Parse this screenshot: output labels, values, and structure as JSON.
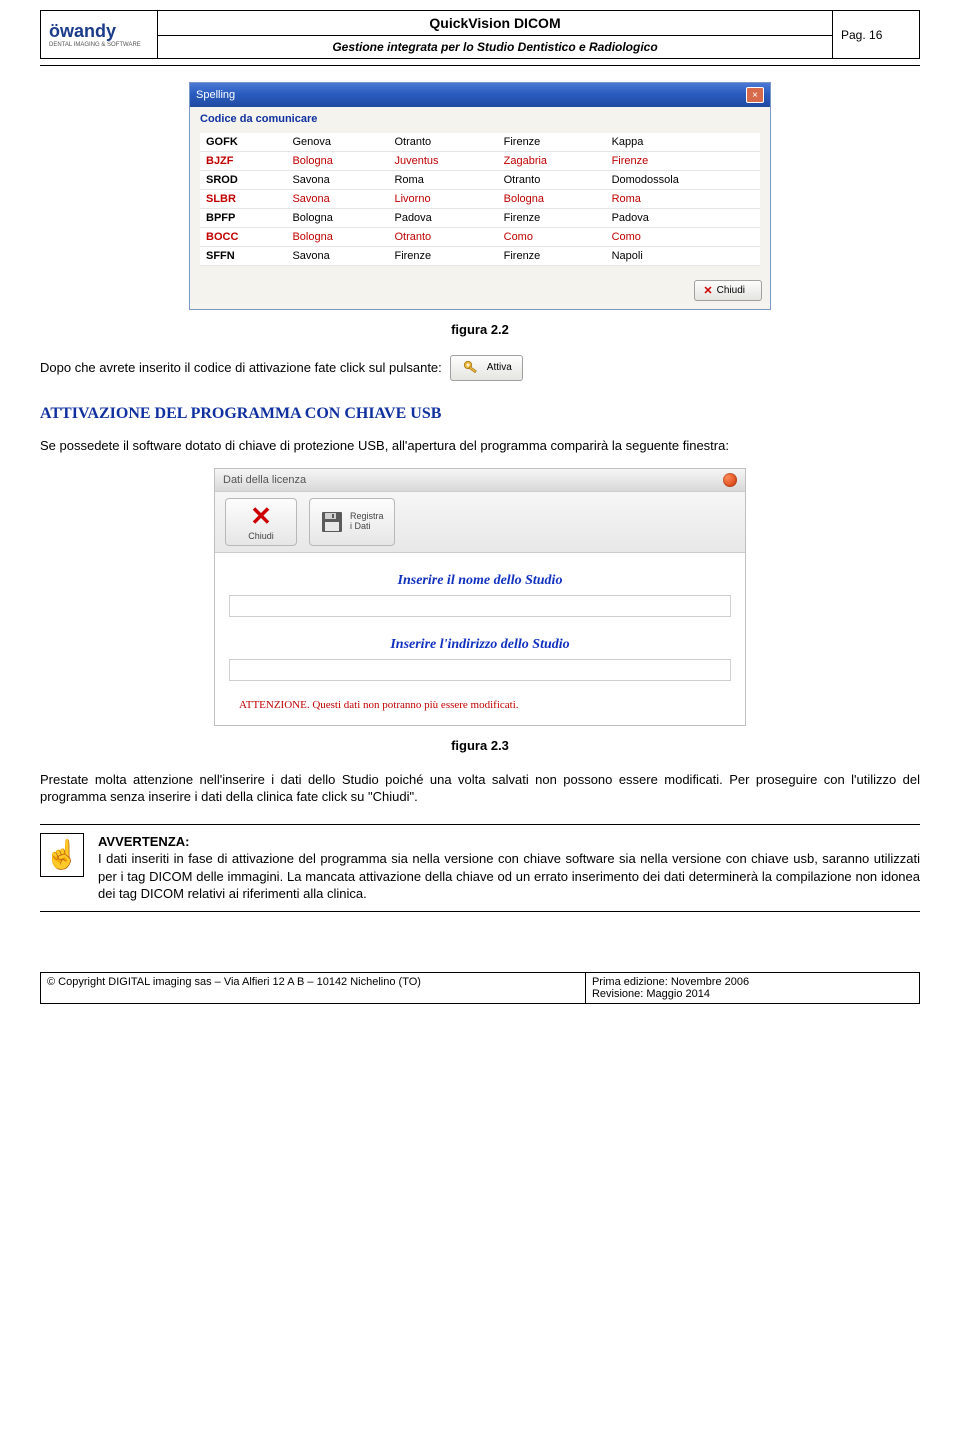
{
  "header": {
    "logo_text": "öwandy",
    "logo_sub": "DENTAL IMAGING & SOFTWARE",
    "title": "QuickVision DICOM",
    "subtitle": "Gestione integrata per lo Studio Dentistico e Radiologico",
    "page_label": "Pag. 16"
  },
  "spelling_window": {
    "title": "Spelling",
    "subtitle": "Codice da comunicare",
    "rows": [
      {
        "code": "GOFK",
        "c1": "Genova",
        "c2": "Otranto",
        "c3": "Firenze",
        "c4": "Kappa",
        "red": false
      },
      {
        "code": "BJZF",
        "c1": "Bologna",
        "c2": "Juventus",
        "c3": "Zagabria",
        "c4": "Firenze",
        "red": true
      },
      {
        "code": "SROD",
        "c1": "Savona",
        "c2": "Roma",
        "c3": "Otranto",
        "c4": "Domodossola",
        "red": false
      },
      {
        "code": "SLBR",
        "c1": "Savona",
        "c2": "Livorno",
        "c3": "Bologna",
        "c4": "Roma",
        "red": true
      },
      {
        "code": "BPFP",
        "c1": "Bologna",
        "c2": "Padova",
        "c3": "Firenze",
        "c4": "Padova",
        "red": false
      },
      {
        "code": "BOCC",
        "c1": "Bologna",
        "c2": "Otranto",
        "c3": "Como",
        "c4": "Como",
        "red": true
      },
      {
        "code": "SFFN",
        "c1": "Savona",
        "c2": "Firenze",
        "c3": "Firenze",
        "c4": "Napoli",
        "red": false
      }
    ],
    "close_label": "Chiudi"
  },
  "caption_22": "figura 2.2",
  "para1": "Dopo che avrete inserito il codice di attivazione fate click sul pulsante:",
  "attiva_label": "Attiva",
  "section_title": "ATTIVAZIONE DEL PROGRAMMA CON CHIAVE USB",
  "para2": "Se possedete il software dotato di chiave di protezione USB, all'apertura del programma comparirà la seguente finestra:",
  "license_window": {
    "title": "Dati della licenza",
    "btn_close": "Chiudi",
    "btn_save_l1": "Registra",
    "btn_save_l2": "i Dati",
    "label_name": "Inserire il nome dello Studio",
    "label_addr": "Inserire l'indirizzo dello Studio",
    "warning": "ATTENZIONE. Questi dati non potranno più essere modificati."
  },
  "caption_23": "figura 2.3",
  "para3": "Prestate molta attenzione nell'inserire i dati dello Studio poiché una volta salvati non possono essere  modificati. Per proseguire con l'utilizzo del programma senza inserire i dati della clinica fate click su \"Chiudi\".",
  "notice": {
    "title": "AVVERTENZA:",
    "body": "I dati inseriti in fase di attivazione del programma sia nella versione con chiave software sia nella versione con chiave usb, saranno utilizzati per i tag DICOM delle immagini. La mancata attivazione della chiave od un errato inserimento dei dati determinerà la compilazione non idonea dei tag DICOM relativi ai riferimenti alla clinica."
  },
  "footer": {
    "left": "© Copyright DIGITAL imaging sas – Via Alfieri 12 A B – 10142 Nichelino (TO)",
    "right_l1": "Prima edizione: Novembre 2006",
    "right_l2": "Revisione: Maggio 2014"
  },
  "colors": {
    "titlebar_blue": "#2a5cc0",
    "heading_blue": "#1030a0",
    "red": "#c00000",
    "panel_grey": "#efefef"
  }
}
